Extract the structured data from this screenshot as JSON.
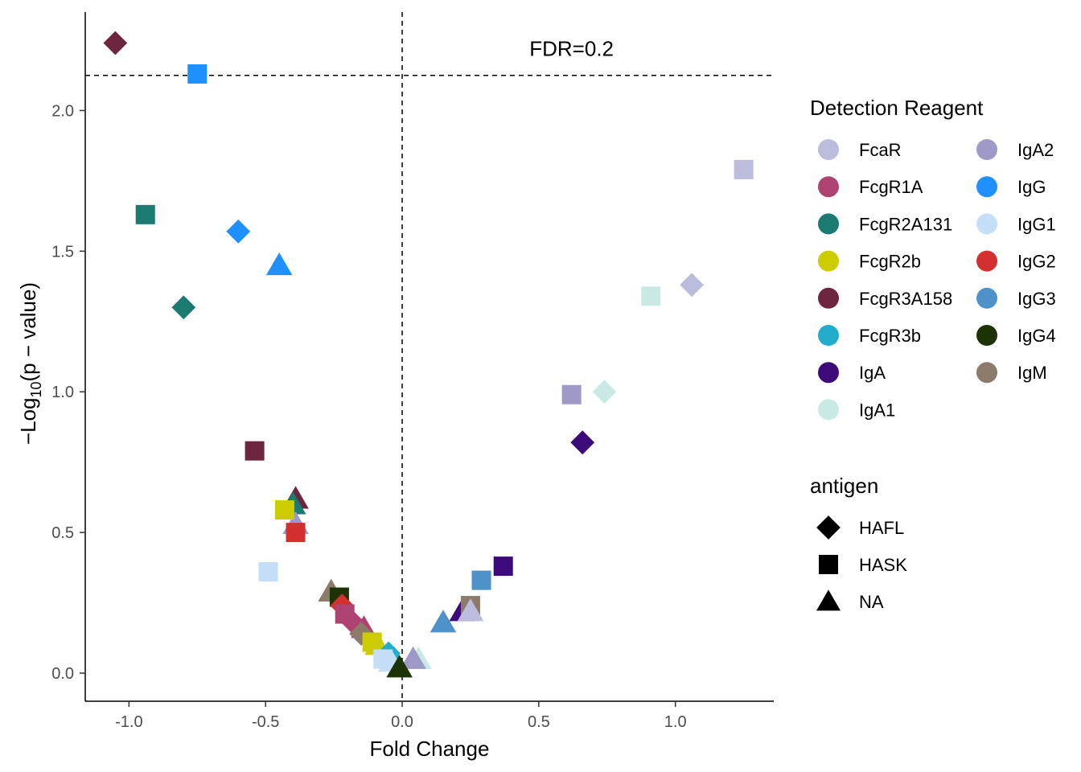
{
  "chart_data": {
    "type": "scatter",
    "xlabel": "Fold Change",
    "ylabel_parts": {
      "prefix": "−Log",
      "subscript": "10",
      "suffix": "(p − value)"
    },
    "xlim": [
      -1.16,
      1.36
    ],
    "ylim": [
      -0.1,
      2.35
    ],
    "x_ticks": [
      {
        "value": -1.0,
        "label": "-1.0"
      },
      {
        "value": -0.5,
        "label": "-0.5"
      },
      {
        "value": 0.0,
        "label": "0.0"
      },
      {
        "value": 0.5,
        "label": "0.5"
      },
      {
        "value": 1.0,
        "label": "1.0"
      }
    ],
    "y_ticks": [
      {
        "value": 0.0,
        "label": "0.0"
      },
      {
        "value": 0.5,
        "label": "0.5"
      },
      {
        "value": 1.0,
        "label": "1.0"
      },
      {
        "value": 1.5,
        "label": "1.5"
      },
      {
        "value": 2.0,
        "label": "2.0"
      }
    ],
    "threshold": {
      "y": 2.125,
      "label": "FDR=0.2",
      "label_x": 0.62,
      "label_y": 2.22
    },
    "vline_x": 0,
    "grid": false,
    "legend_placement": "right",
    "color_legend": {
      "title": "Detection Reagent",
      "items": [
        {
          "key": "FcaR",
          "label": "FcaR",
          "color": "#BCBDDC"
        },
        {
          "key": "FcgR1A",
          "label": "FcgR1A",
          "color": "#AE4371"
        },
        {
          "key": "FcgR2A131",
          "label": "FcgR2A131",
          "color": "#1B7A72"
        },
        {
          "key": "FcgR2b",
          "label": "FcgR2b",
          "color": "#CCCC00"
        },
        {
          "key": "FcgR3A158",
          "label": "FcgR3A158",
          "color": "#6E2640"
        },
        {
          "key": "FcgR3b",
          "label": "FcgR3b",
          "color": "#21ADCB"
        },
        {
          "key": "IgA",
          "label": "IgA",
          "color": "#3D0A7A"
        },
        {
          "key": "IgA1",
          "label": "IgA1",
          "color": "#C9EAE4"
        },
        {
          "key": "IgA2",
          "label": "IgA2",
          "color": "#9E9AC8"
        },
        {
          "key": "IgG",
          "label": "IgG",
          "color": "#1E90FF"
        },
        {
          "key": "IgG1",
          "label": "IgG1",
          "color": "#C6DFF9"
        },
        {
          "key": "IgG2",
          "label": "IgG2",
          "color": "#D43030"
        },
        {
          "key": "IgG3",
          "label": "IgG3",
          "color": "#4F92C9"
        },
        {
          "key": "IgG4",
          "label": "IgG4",
          "color": "#1C3305"
        },
        {
          "key": "IgM",
          "label": "IgM",
          "color": "#8C7A6B"
        }
      ]
    },
    "shape_legend": {
      "title": "antigen",
      "items": [
        {
          "key": "HAFL",
          "label": "HAFL",
          "shape": "diamond"
        },
        {
          "key": "HASK",
          "label": "HASK",
          "shape": "square"
        },
        {
          "key": "NA",
          "label": "NA",
          "shape": "triangle"
        }
      ]
    },
    "points": [
      {
        "x": -1.05,
        "y": 2.24,
        "reagent": "FcgR3A158",
        "antigen": "HAFL"
      },
      {
        "x": -0.75,
        "y": 2.13,
        "reagent": "IgG",
        "antigen": "HASK"
      },
      {
        "x": -0.94,
        "y": 1.63,
        "reagent": "FcgR2A131",
        "antigen": "HASK"
      },
      {
        "x": -0.6,
        "y": 1.57,
        "reagent": "IgG",
        "antigen": "HAFL"
      },
      {
        "x": -0.45,
        "y": 1.45,
        "reagent": "IgG",
        "antigen": "NA"
      },
      {
        "x": -0.8,
        "y": 1.3,
        "reagent": "FcgR2A131",
        "antigen": "HAFL"
      },
      {
        "x": -0.54,
        "y": 0.79,
        "reagent": "FcgR3A158",
        "antigen": "HASK"
      },
      {
        "x": -0.39,
        "y": 0.62,
        "reagent": "FcgR3A158",
        "antigen": "NA"
      },
      {
        "x": -0.4,
        "y": 0.6,
        "reagent": "FcgR2A131",
        "antigen": "NA"
      },
      {
        "x": -0.39,
        "y": 0.53,
        "reagent": "IgA2",
        "antigen": "NA"
      },
      {
        "x": -0.43,
        "y": 0.58,
        "reagent": "FcgR2b",
        "antigen": "HASK"
      },
      {
        "x": -0.39,
        "y": 0.5,
        "reagent": "IgG2",
        "antigen": "HASK"
      },
      {
        "x": -0.49,
        "y": 0.36,
        "reagent": "IgG1",
        "antigen": "HASK"
      },
      {
        "x": -0.26,
        "y": 0.29,
        "reagent": "IgM",
        "antigen": "NA"
      },
      {
        "x": -0.23,
        "y": 0.27,
        "reagent": "IgG4",
        "antigen": "HASK"
      },
      {
        "x": -0.22,
        "y": 0.24,
        "reagent": "IgG2",
        "antigen": "HAFL"
      },
      {
        "x": -0.21,
        "y": 0.21,
        "reagent": "FcgR1A",
        "antigen": "HASK"
      },
      {
        "x": -0.18,
        "y": 0.18,
        "reagent": "FcgR1A",
        "antigen": "HAFL"
      },
      {
        "x": -0.14,
        "y": 0.16,
        "reagent": "FcgR1A",
        "antigen": "NA"
      },
      {
        "x": -0.15,
        "y": 0.14,
        "reagent": "IgM",
        "antigen": "HAFL"
      },
      {
        "x": -0.11,
        "y": 0.11,
        "reagent": "FcgR2b",
        "antigen": "HASK"
      },
      {
        "x": -0.09,
        "y": 0.1,
        "reagent": "FcgR2b",
        "antigen": "NA"
      },
      {
        "x": -0.05,
        "y": 0.07,
        "reagent": "FcgR3b",
        "antigen": "HAFL"
      },
      {
        "x": -0.03,
        "y": 0.05,
        "reagent": "FcgR3b",
        "antigen": "NA"
      },
      {
        "x": -0.07,
        "y": 0.05,
        "reagent": "IgG1",
        "antigen": "HASK"
      },
      {
        "x": -0.04,
        "y": 0.04,
        "reagent": "IgG1",
        "antigen": "NA"
      },
      {
        "x": 0.06,
        "y": 0.05,
        "reagent": "IgA1",
        "antigen": "NA"
      },
      {
        "x": 0.04,
        "y": 0.05,
        "reagent": "IgA2",
        "antigen": "NA"
      },
      {
        "x": -0.01,
        "y": 0.02,
        "reagent": "IgG4",
        "antigen": "NA"
      },
      {
        "x": 0.15,
        "y": 0.18,
        "reagent": "IgG3",
        "antigen": "NA"
      },
      {
        "x": 0.22,
        "y": 0.22,
        "reagent": "IgA",
        "antigen": "NA"
      },
      {
        "x": 0.25,
        "y": 0.24,
        "reagent": "IgM",
        "antigen": "HASK"
      },
      {
        "x": 0.25,
        "y": 0.22,
        "reagent": "FcaR",
        "antigen": "NA"
      },
      {
        "x": 0.29,
        "y": 0.33,
        "reagent": "IgG3",
        "antigen": "HASK"
      },
      {
        "x": 0.37,
        "y": 0.38,
        "reagent": "IgA",
        "antigen": "HASK"
      },
      {
        "x": 0.62,
        "y": 0.99,
        "reagent": "IgA2",
        "antigen": "HASK"
      },
      {
        "x": 0.66,
        "y": 0.82,
        "reagent": "IgA",
        "antigen": "HAFL"
      },
      {
        "x": 0.74,
        "y": 1.0,
        "reagent": "IgA1",
        "antigen": "HAFL"
      },
      {
        "x": 0.91,
        "y": 1.34,
        "reagent": "IgA1",
        "antigen": "HASK"
      },
      {
        "x": 1.06,
        "y": 1.38,
        "reagent": "FcaR",
        "antigen": "HAFL"
      },
      {
        "x": 1.25,
        "y": 1.79,
        "reagent": "FcaR",
        "antigen": "HASK"
      }
    ]
  }
}
